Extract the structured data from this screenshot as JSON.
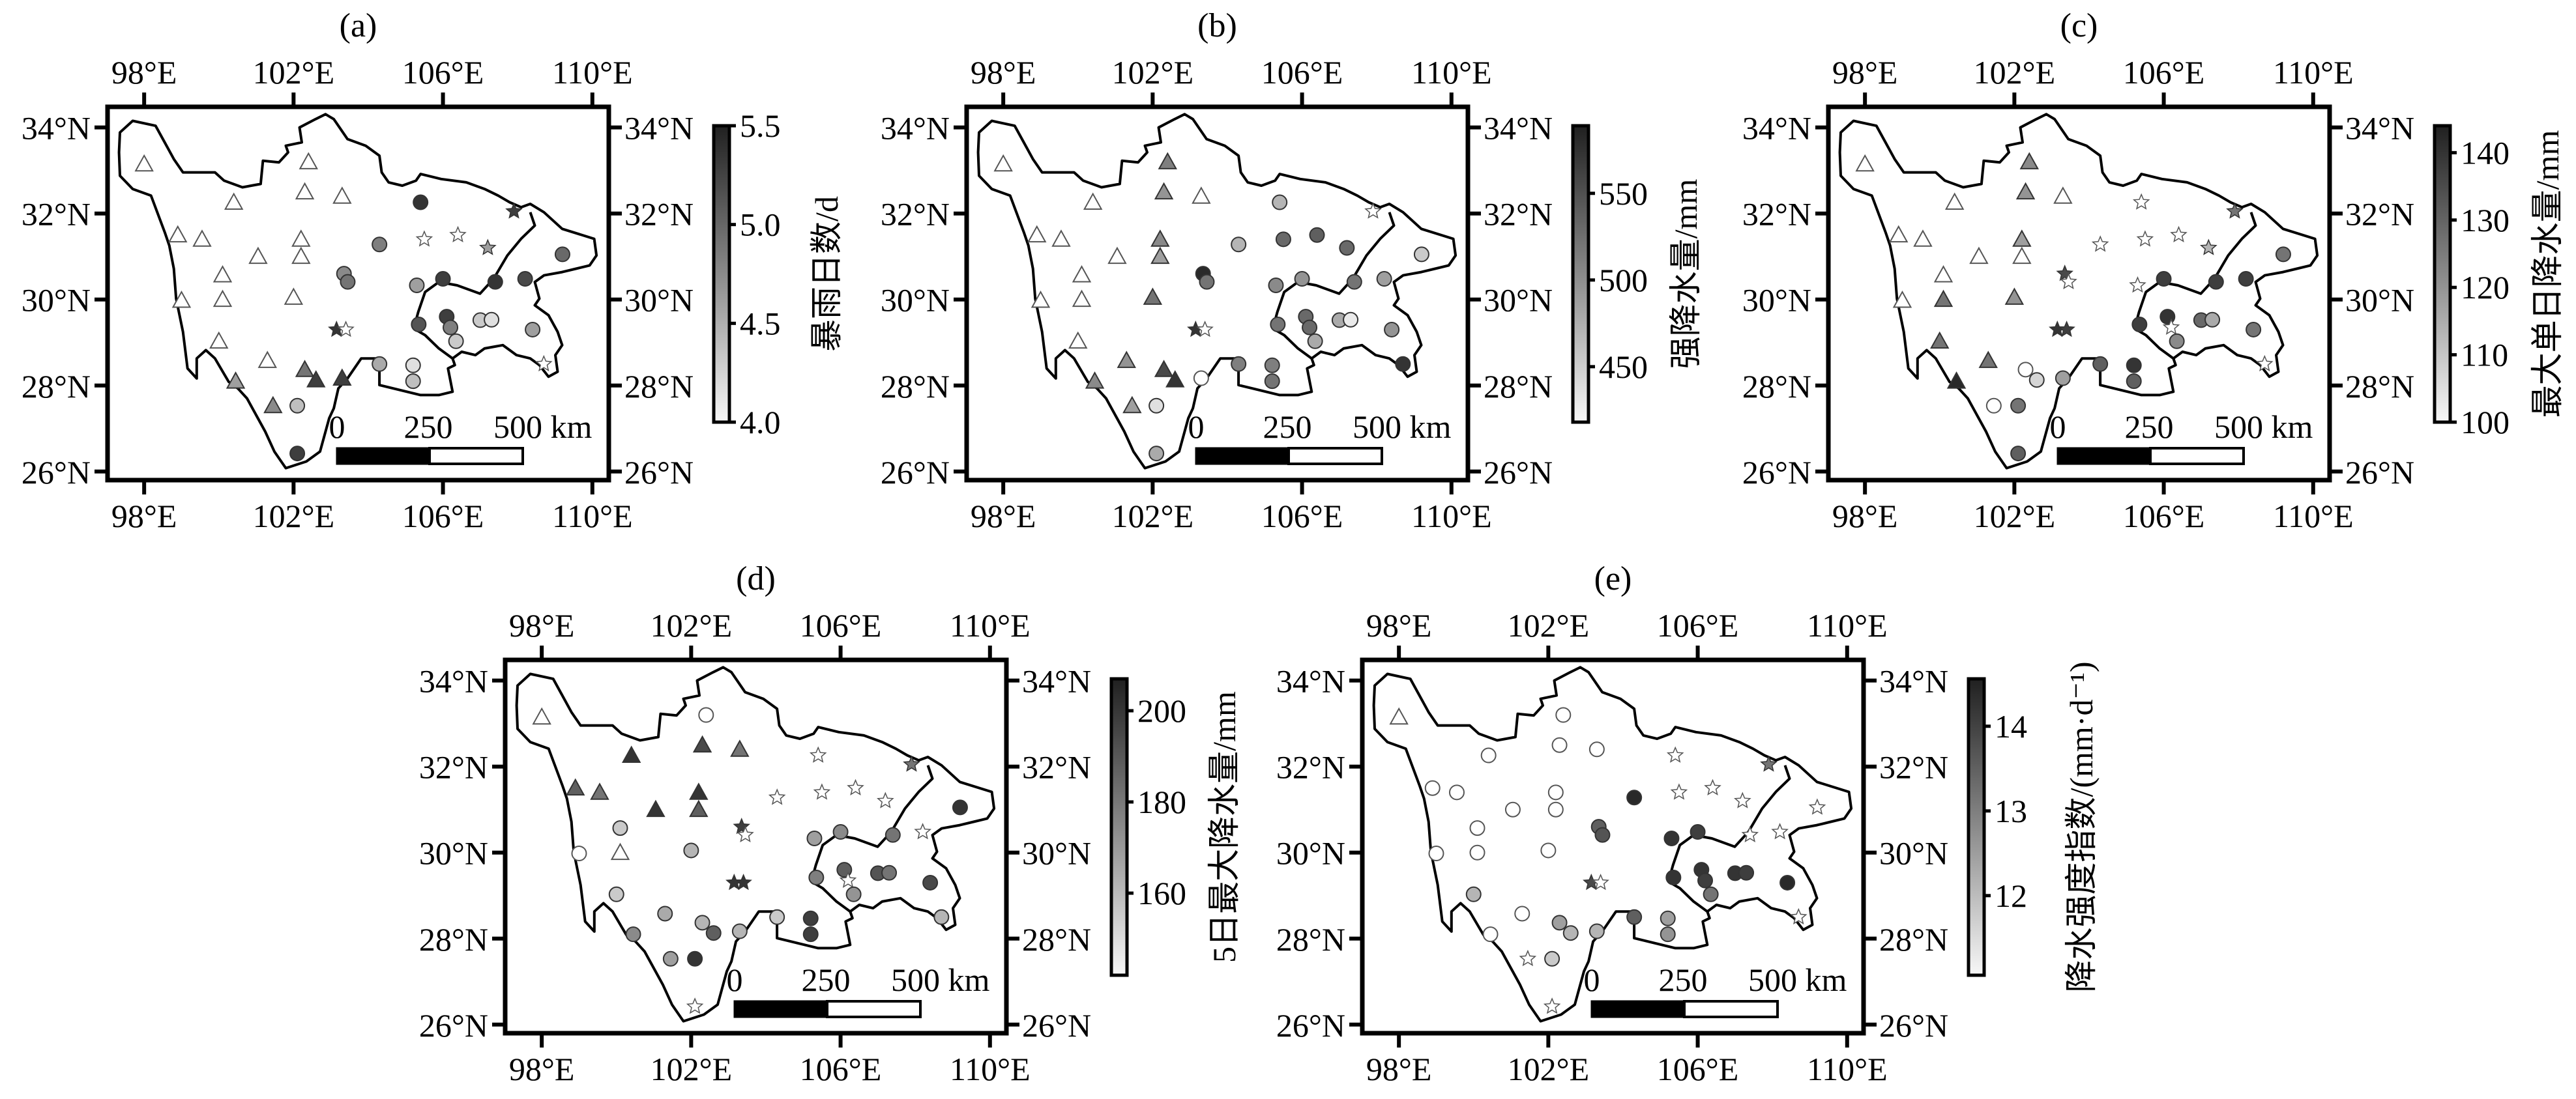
{
  "axes": {
    "lon_values": [
      98,
      102,
      106,
      110
    ],
    "lon_labels": [
      "98°E",
      "102°E",
      "106°E",
      "110°E"
    ],
    "lat_values": [
      34,
      32,
      30,
      28,
      26
    ],
    "lat_labels": [
      "34°N",
      "32°N",
      "30°N",
      "28°N",
      "26°N"
    ],
    "lon_range": [
      97.02,
      110.44
    ],
    "lat_range": [
      25.8,
      34.48
    ]
  },
  "scale_bar": {
    "labels": [
      "0",
      "250",
      "500 km"
    ]
  },
  "stations": [
    [
      98.0,
      33.15
    ],
    [
      102.4,
      33.2
    ],
    [
      100.4,
      32.26
    ],
    [
      102.3,
      32.5
    ],
    [
      103.3,
      32.4
    ],
    [
      105.4,
      32.26
    ],
    [
      107.9,
      32.05
    ],
    [
      98.9,
      31.5
    ],
    [
      99.55,
      31.4
    ],
    [
      102.2,
      31.4
    ],
    [
      105.5,
      31.4
    ],
    [
      106.4,
      31.5
    ],
    [
      104.3,
      31.28
    ],
    [
      107.2,
      31.2
    ],
    [
      101.05,
      31.0
    ],
    [
      102.2,
      31.0
    ],
    [
      109.2,
      31.05
    ],
    [
      100.1,
      30.57
    ],
    [
      103.35,
      30.6
    ],
    [
      103.45,
      30.41
    ],
    [
      106.0,
      30.48
    ],
    [
      107.4,
      30.41
    ],
    [
      108.2,
      30.48
    ],
    [
      105.3,
      30.33
    ],
    [
      99.0,
      29.98
    ],
    [
      100.1,
      30.0
    ],
    [
      102.0,
      30.05
    ],
    [
      106.1,
      29.6
    ],
    [
      105.35,
      29.42
    ],
    [
      106.2,
      29.35
    ],
    [
      107.0,
      29.52
    ],
    [
      107.3,
      29.53
    ],
    [
      108.4,
      29.3
    ],
    [
      103.15,
      29.3
    ],
    [
      103.4,
      29.3
    ],
    [
      106.35,
      29.03
    ],
    [
      100.0,
      29.03
    ],
    [
      101.3,
      28.58
    ],
    [
      102.3,
      28.37
    ],
    [
      104.3,
      28.5
    ],
    [
      105.2,
      28.47
    ],
    [
      108.7,
      28.5
    ],
    [
      100.45,
      28.1
    ],
    [
      102.6,
      28.13
    ],
    [
      103.3,
      28.17
    ],
    [
      105.2,
      28.1
    ],
    [
      101.45,
      27.53
    ],
    [
      102.1,
      27.53
    ],
    [
      102.1,
      26.42
    ]
  ],
  "chart_data": [
    {
      "type": "scatter",
      "title": "(a)",
      "colorbar_label": "暴雨日数/d",
      "colorbar_range": [
        4.0,
        5.5
      ],
      "colorbar_ticks": [
        4.0,
        4.5,
        5.0,
        5.5
      ],
      "colorbar_tick_labels": [
        "4.0",
        "4.5",
        "5.0",
        "5.5"
      ],
      "points": [
        [
          "tri-o",
          0
        ],
        [
          "tri-o",
          0
        ],
        [
          "tri-o",
          0
        ],
        [
          "tri-o",
          0
        ],
        [
          "tri-o",
          0
        ],
        [
          "cir",
          0.9
        ],
        [
          "star",
          0.85
        ],
        [
          "tri-o",
          0
        ],
        [
          "tri-o",
          0
        ],
        [
          "tri-o",
          0
        ],
        [
          "star-o",
          0
        ],
        [
          "star-o",
          0
        ],
        [
          "cir",
          0.55
        ],
        [
          "star",
          0.4
        ],
        [
          "tri-o",
          0
        ],
        [
          "tri-o",
          0
        ],
        [
          "cir",
          0.65
        ],
        [
          "tri-o",
          0
        ],
        [
          "cir",
          0.5
        ],
        [
          "cir",
          0.6
        ],
        [
          "cir",
          0.85
        ],
        [
          "cir",
          0.9
        ],
        [
          "cir",
          0.8
        ],
        [
          "cir",
          0.4
        ],
        [
          "tri-o",
          0
        ],
        [
          "tri-o",
          0
        ],
        [
          "tri-o",
          0
        ],
        [
          "cir",
          0.85
        ],
        [
          "cir",
          0.75
        ],
        [
          "cir",
          0.55
        ],
        [
          "cir",
          0.2
        ],
        [
          "cir",
          0.1
        ],
        [
          "cir",
          0.4
        ],
        [
          "star",
          0.9
        ],
        [
          "star-o",
          0
        ],
        [
          "cir",
          0.2
        ],
        [
          "tri-o",
          0
        ],
        [
          "tri-o",
          0
        ],
        [
          "tri",
          0.6
        ],
        [
          "cir",
          0.35
        ],
        [
          "cir",
          0.1
        ],
        [
          "star-o",
          0
        ],
        [
          "tri",
          0.4
        ],
        [
          "tri",
          0.85
        ],
        [
          "tri",
          0.85
        ],
        [
          "cir",
          0.25
        ],
        [
          "tri",
          0.5
        ],
        [
          "cir",
          0.25
        ],
        [
          "cir",
          0.85
        ]
      ]
    },
    {
      "type": "scatter",
      "title": "(b)",
      "colorbar_label": "强降水量/mm",
      "colorbar_range": [
        418,
        589
      ],
      "colorbar_ticks": [
        450,
        500,
        550
      ],
      "colorbar_tick_labels": [
        "450",
        "500",
        "550"
      ],
      "points": [
        [
          "tri-o",
          0
        ],
        [
          "tri",
          0.55
        ],
        [
          "tri-o",
          0
        ],
        [
          "tri",
          0.45
        ],
        [
          "tri-o",
          0
        ],
        [
          "cir",
          0.3
        ],
        [
          "star-o",
          0
        ],
        [
          "tri-o",
          0
        ],
        [
          "tri-o",
          0
        ],
        [
          "tri",
          0.5
        ],
        [
          "cir",
          0.65
        ],
        [
          "cir",
          0.7
        ],
        [
          "cir",
          0.3
        ],
        [
          "cir",
          0.65
        ],
        [
          "tri-o",
          0
        ],
        [
          "tri",
          0.4
        ],
        [
          "cir",
          0.2
        ],
        [
          "tri-o",
          0
        ],
        [
          "cir",
          0.95
        ],
        [
          "cir",
          0.6
        ],
        [
          "cir",
          0.45
        ],
        [
          "cir",
          0.6
        ],
        [
          "cir",
          0.4
        ],
        [
          "cir",
          0.5
        ],
        [
          "tri-o",
          0
        ],
        [
          "tri-o",
          0
        ],
        [
          "tri",
          0.6
        ],
        [
          "cir",
          0.65
        ],
        [
          "cir",
          0.6
        ],
        [
          "cir",
          0.65
        ],
        [
          "cir",
          0.35
        ],
        [
          "cir",
          0.05
        ],
        [
          "cir",
          0.45
        ],
        [
          "star",
          0.9
        ],
        [
          "star-o",
          0
        ],
        [
          "cir",
          0.35
        ],
        [
          "tri-o",
          0
        ],
        [
          "tri",
          0.45
        ],
        [
          "tri",
          0.8
        ],
        [
          "cir",
          0.55
        ],
        [
          "cir",
          0.55
        ],
        [
          "cir",
          0.9
        ],
        [
          "tri",
          0.5
        ],
        [
          "tri",
          0.9
        ],
        [
          "cir-o",
          0
        ],
        [
          "cir",
          0.6
        ],
        [
          "tri",
          0.4
        ],
        [
          "cir",
          0.1
        ],
        [
          "cir",
          0.35
        ]
      ]
    },
    {
      "type": "scatter",
      "title": "(c)",
      "colorbar_label": "最大单日降水量/mm",
      "colorbar_range": [
        100,
        144
      ],
      "colorbar_ticks": [
        100,
        110,
        120,
        130,
        140
      ],
      "colorbar_tick_labels": [
        "100",
        "110",
        "120",
        "130",
        "140"
      ],
      "points": [
        [
          "tri-o",
          0
        ],
        [
          "tri",
          0.5
        ],
        [
          "tri-o",
          0
        ],
        [
          "tri",
          0.45
        ],
        [
          "tri-o",
          0
        ],
        [
          "star-o",
          0
        ],
        [
          "star",
          0.6
        ],
        [
          "tri-o",
          0
        ],
        [
          "tri-o",
          0
        ],
        [
          "tri",
          0.4
        ],
        [
          "star-o",
          0
        ],
        [
          "star-o",
          0
        ],
        [
          "star-o",
          0
        ],
        [
          "star",
          0.3
        ],
        [
          "tri-o",
          0
        ],
        [
          "tri-o",
          0
        ],
        [
          "cir",
          0.6
        ],
        [
          "tri-o",
          0
        ],
        [
          "star",
          0.8
        ],
        [
          "star-o",
          0
        ],
        [
          "cir",
          0.85
        ],
        [
          "cir",
          0.85
        ],
        [
          "cir",
          0.85
        ],
        [
          "star-o",
          0
        ],
        [
          "tri-o",
          0
        ],
        [
          "tri",
          0.6
        ],
        [
          "tri",
          0.45
        ],
        [
          "cir",
          0.9
        ],
        [
          "cir",
          0.85
        ],
        [
          "star-o",
          0
        ],
        [
          "cir",
          0.65
        ],
        [
          "cir",
          0.35
        ],
        [
          "cir",
          0.6
        ],
        [
          "star",
          0.9
        ],
        [
          "star",
          0.85
        ],
        [
          "cir",
          0.5
        ],
        [
          "tri",
          0.6
        ],
        [
          "tri",
          0.6
        ],
        [
          "cir-o",
          0
        ],
        [
          "cir",
          0.7
        ],
        [
          "cir",
          0.9
        ],
        [
          "star-o",
          0
        ],
        [
          "tri",
          0.95
        ],
        [
          "cir",
          0.15
        ],
        [
          "cir",
          0.4
        ],
        [
          "cir",
          0.7
        ],
        [
          "cir-o",
          0
        ],
        [
          "cir",
          0.6
        ],
        [
          "cir",
          0.7
        ]
      ]
    },
    {
      "type": "scatter",
      "title": "(d)",
      "colorbar_label": "5日最大降水量/mm",
      "colorbar_range": [
        142,
        207
      ],
      "colorbar_ticks": [
        160,
        180,
        200
      ],
      "colorbar_tick_labels": [
        "160",
        "180",
        "200"
      ],
      "points": [
        [
          "tri-o",
          0
        ],
        [
          "cir-o",
          0
        ],
        [
          "tri",
          0.9
        ],
        [
          "tri",
          0.8
        ],
        [
          "tri",
          0.6
        ],
        [
          "star-o",
          0
        ],
        [
          "star",
          0.6
        ],
        [
          "tri",
          0.7
        ],
        [
          "tri",
          0.6
        ],
        [
          "tri",
          0.9
        ],
        [
          "star-o",
          0
        ],
        [
          "star-o",
          0
        ],
        [
          "star-o",
          0
        ],
        [
          "star-o",
          0
        ],
        [
          "tri",
          0.9
        ],
        [
          "tri",
          0.7
        ],
        [
          "cir",
          0.9
        ],
        [
          "cir",
          0.2
        ],
        [
          "star",
          0.85
        ],
        [
          "star-o",
          0
        ],
        [
          "cir",
          0.5
        ],
        [
          "cir",
          0.6
        ],
        [
          "star-o",
          0
        ],
        [
          "cir",
          0.4
        ],
        [
          "cir-o",
          0
        ],
        [
          "tri-o",
          0
        ],
        [
          "cir",
          0.3
        ],
        [
          "cir",
          0.7
        ],
        [
          "cir",
          0.55
        ],
        [
          "star-o",
          0
        ],
        [
          "cir",
          0.75
        ],
        [
          "cir",
          0.6
        ],
        [
          "cir",
          0.8
        ],
        [
          "star",
          0.9
        ],
        [
          "star",
          0.9
        ],
        [
          "cir",
          0.45
        ],
        [
          "cir",
          0.2
        ],
        [
          "cir",
          0.35
        ],
        [
          "cir",
          0.3
        ],
        [
          "cir",
          0.2
        ],
        [
          "cir",
          0.85
        ],
        [
          "cir",
          0.3
        ],
        [
          "cir",
          0.5
        ],
        [
          "cir",
          0.7
        ],
        [
          "cir",
          0.3
        ],
        [
          "cir",
          0.85
        ],
        [
          "cir",
          0.4
        ],
        [
          "cir",
          0.9
        ],
        [
          "star-o",
          0
        ]
      ]
    },
    {
      "type": "scatter",
      "title": "(e)",
      "colorbar_label": "降水强度指数/(mm·d⁻¹)",
      "colorbar_range": [
        11.06,
        14.56
      ],
      "colorbar_ticks": [
        12,
        13,
        14
      ],
      "colorbar_tick_labels": [
        "12",
        "13",
        "14"
      ],
      "points": [
        [
          "tri-o",
          0
        ],
        [
          "cir-o",
          0
        ],
        [
          "cir-o",
          0
        ],
        [
          "cir-o",
          0
        ],
        [
          "cir-o",
          0
        ],
        [
          "star-o",
          0
        ],
        [
          "star",
          0.6
        ],
        [
          "cir-o",
          0
        ],
        [
          "cir-o",
          0
        ],
        [
          "cir-o",
          0
        ],
        [
          "star-o",
          0
        ],
        [
          "star-o",
          0
        ],
        [
          "cir",
          0.95
        ],
        [
          "star-o",
          0
        ],
        [
          "cir-o",
          0
        ],
        [
          "cir-o",
          0
        ],
        [
          "star-o",
          0
        ],
        [
          "cir-o",
          0
        ],
        [
          "cir",
          0.7
        ],
        [
          "cir",
          0.75
        ],
        [
          "cir",
          0.85
        ],
        [
          "star-o",
          0
        ],
        [
          "star-o",
          0
        ],
        [
          "cir",
          0.9
        ],
        [
          "cir-o",
          0
        ],
        [
          "cir-o",
          0
        ],
        [
          "cir-o",
          0
        ],
        [
          "cir",
          0.9
        ],
        [
          "cir",
          0.9
        ],
        [
          "cir",
          0.85
        ],
        [
          "cir",
          0.9
        ],
        [
          "cir",
          0.85
        ],
        [
          "cir",
          0.95
        ],
        [
          "star",
          0.8
        ],
        [
          "star-o",
          0
        ],
        [
          "cir",
          0.6
        ],
        [
          "cir",
          0.3
        ],
        [
          "cir-o",
          0
        ],
        [
          "cir",
          0.4
        ],
        [
          "cir",
          0.7
        ],
        [
          "cir",
          0.4
        ],
        [
          "star-o",
          0
        ],
        [
          "cir-o",
          0
        ],
        [
          "cir",
          0.3
        ],
        [
          "cir",
          0.3
        ],
        [
          "cir",
          0.45
        ],
        [
          "star-o",
          0
        ],
        [
          "cir",
          0.2
        ],
        [
          "star-o",
          0
        ]
      ]
    }
  ]
}
